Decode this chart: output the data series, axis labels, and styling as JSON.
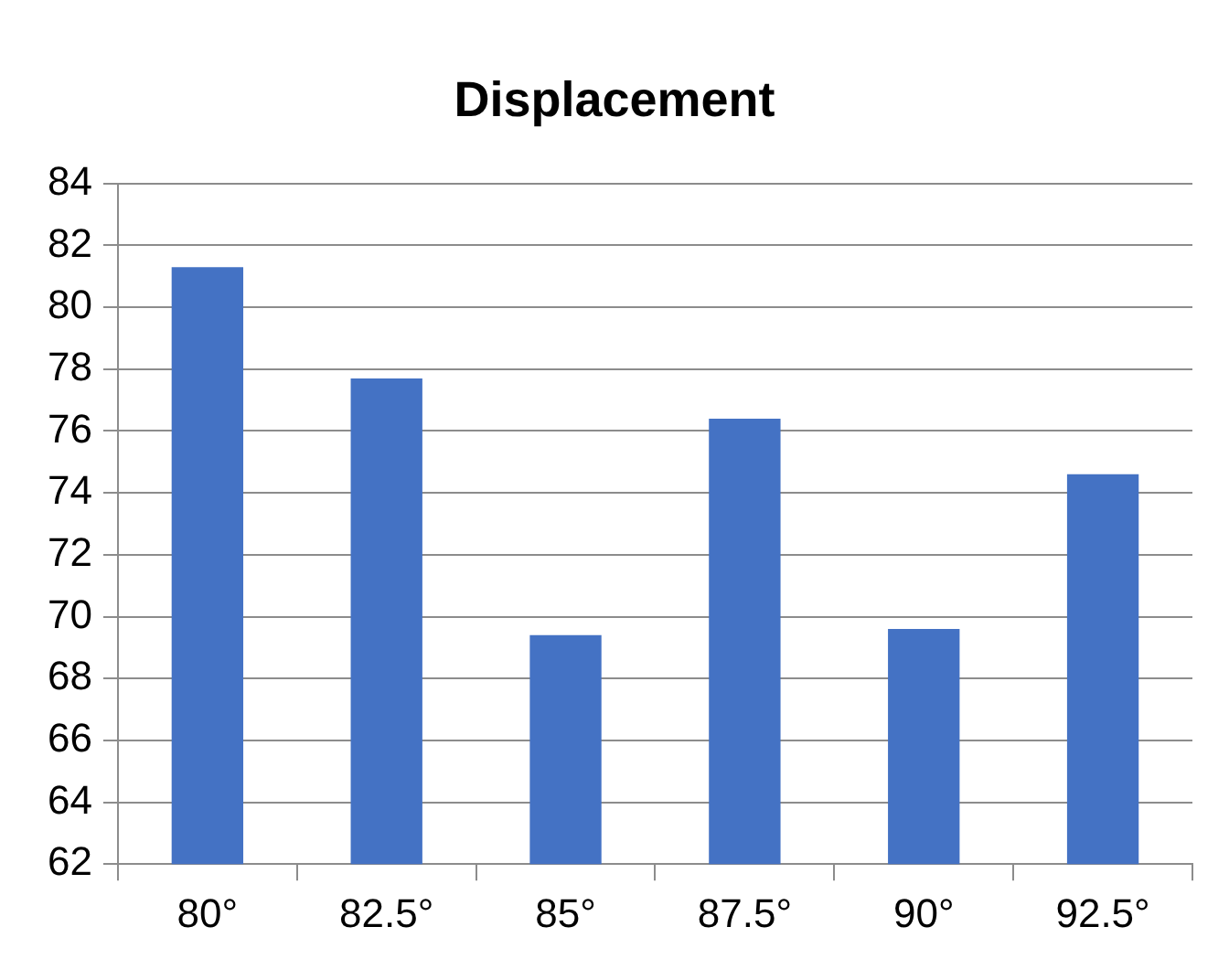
{
  "chart_data": {
    "type": "bar",
    "title": "Displacement",
    "categories": [
      "80°",
      "82.5°",
      "85°",
      "87.5°",
      "90°",
      "92.5°"
    ],
    "values": [
      81.3,
      77.7,
      69.4,
      76.4,
      69.6,
      74.6
    ],
    "color": "#4472c4",
    "ylim": [
      62,
      84
    ],
    "yticks": [
      62,
      64,
      66,
      68,
      70,
      72,
      74,
      76,
      78,
      80,
      82,
      84
    ],
    "grid": "y",
    "legend": false
  }
}
